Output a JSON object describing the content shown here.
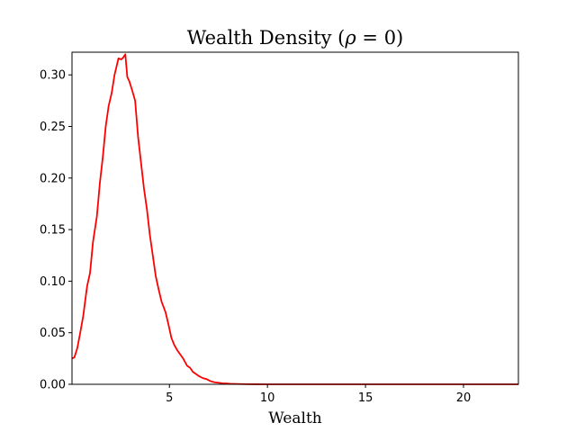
{
  "chart_data": {
    "type": "line",
    "title_prefix": "Wealth Density (",
    "title_symbol": "ρ",
    "title_suffix": " = 0)",
    "xlabel": "Wealth",
    "ylabel": "",
    "xlim": [
      0.03,
      22.8
    ],
    "ylim": [
      0,
      0.322
    ],
    "xticks": [
      5,
      10,
      15,
      20
    ],
    "yticks": [
      0.0,
      0.05,
      0.1,
      0.15,
      0.2,
      0.25,
      0.3
    ],
    "grid": false,
    "line_color": "#ff0000",
    "series": [
      {
        "x": [
          0.03,
          0.15,
          0.3,
          0.45,
          0.6,
          0.8,
          0.95,
          1.1,
          1.3,
          1.45,
          1.6,
          1.75,
          1.9,
          2.05,
          2.2,
          2.4,
          2.55,
          2.65,
          2.75,
          2.85,
          2.95,
          3.1,
          3.25,
          3.4,
          3.55,
          3.7,
          3.85,
          4.0,
          4.15,
          4.3,
          4.45,
          4.6,
          4.8,
          4.95,
          5.1,
          5.25,
          5.4,
          5.55,
          5.7,
          5.9,
          6.05,
          6.2,
          6.35,
          6.5,
          6.7,
          6.9,
          7.1,
          7.3,
          7.5,
          7.7,
          7.9,
          8.1,
          8.4,
          8.7,
          9.0,
          9.4,
          9.8,
          10.3,
          11.0,
          12.0,
          14.0,
          16.0,
          18.0,
          20.0,
          22.8
        ],
        "y": [
          0.025,
          0.026,
          0.035,
          0.05,
          0.066,
          0.095,
          0.108,
          0.138,
          0.163,
          0.195,
          0.22,
          0.25,
          0.27,
          0.282,
          0.3,
          0.316,
          0.315,
          0.317,
          0.32,
          0.298,
          0.294,
          0.285,
          0.275,
          0.24,
          0.215,
          0.19,
          0.17,
          0.145,
          0.125,
          0.105,
          0.092,
          0.08,
          0.07,
          0.058,
          0.045,
          0.038,
          0.033,
          0.029,
          0.025,
          0.018,
          0.016,
          0.012,
          0.01,
          0.008,
          0.006,
          0.005,
          0.003,
          0.002,
          0.0015,
          0.001,
          0.0008,
          0.0005,
          0.0003,
          0.0002,
          0.0001,
          5e-05,
          3e-05,
          2e-05,
          1e-05,
          0.0,
          0.0,
          0.0,
          0.0,
          0.0,
          0.0
        ]
      }
    ]
  }
}
